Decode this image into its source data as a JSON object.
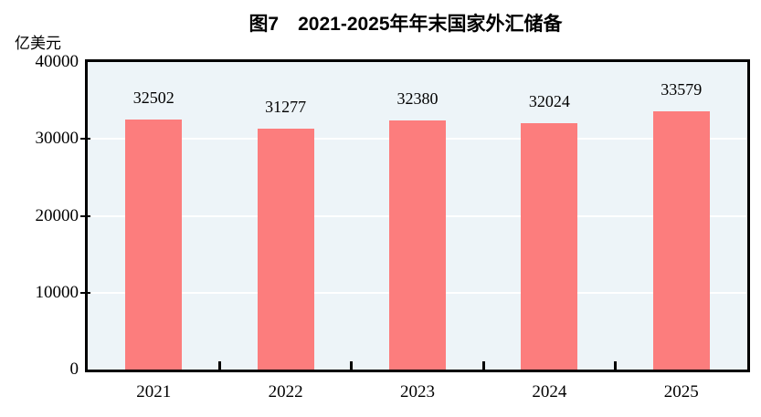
{
  "chart_data": {
    "type": "bar",
    "title": "图7　2021-2025年年末国家外汇储备",
    "ylabel": "亿美元",
    "xlabel": "",
    "categories": [
      "2021",
      "2022",
      "2023",
      "2024",
      "2025"
    ],
    "values": [
      32502,
      31277,
      32380,
      32024,
      33579
    ],
    "data_labels": [
      "32502",
      "31277",
      "32380",
      "32024",
      "33579"
    ],
    "ytick_labels": [
      "0",
      "10000",
      "20000",
      "30000",
      "40000"
    ],
    "yticks": [
      0,
      10000,
      20000,
      30000,
      40000
    ],
    "ylim": [
      0,
      40000
    ],
    "grid": "horizontal",
    "legend": "none",
    "colors": {
      "bar": "#FC7D7D",
      "plot_bg": "#EDF4F8",
      "gridline": "#FFFFFF",
      "axis": "#000000",
      "text": "#000000",
      "background": "#FFFFFF"
    }
  }
}
